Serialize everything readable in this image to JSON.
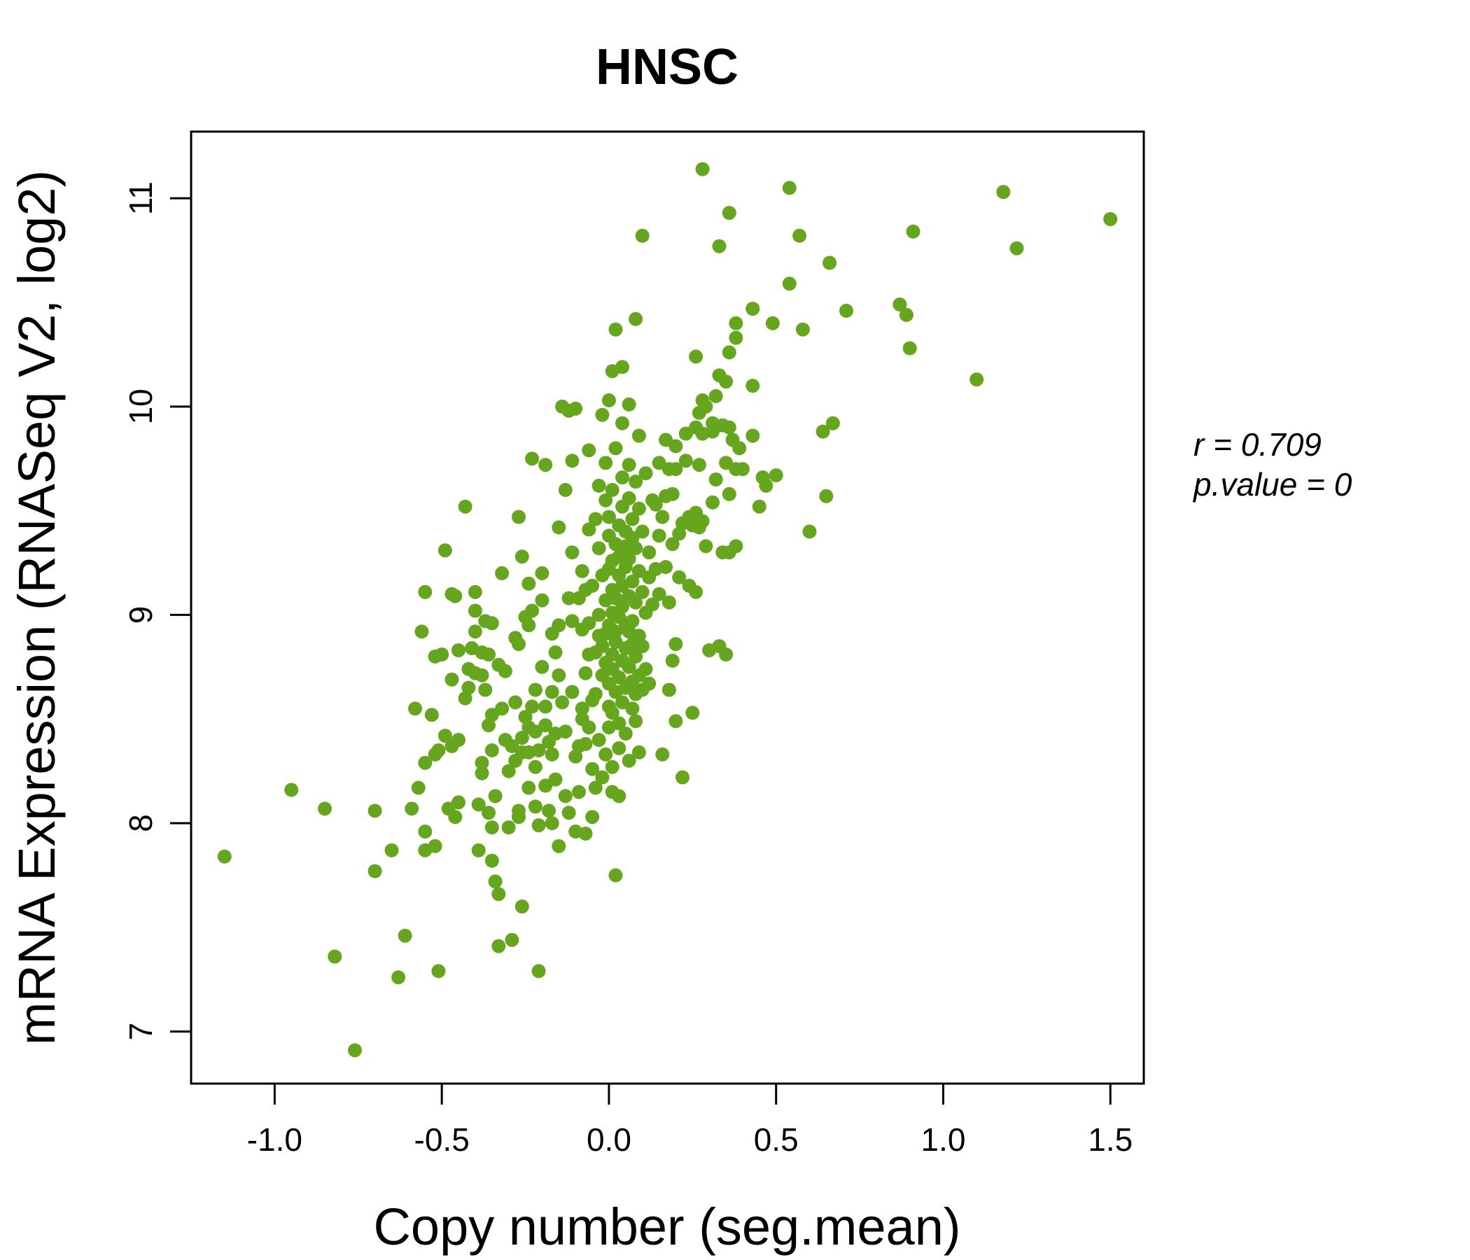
{
  "chart_data": {
    "type": "scatter",
    "title": "HNSC",
    "title_color": "#66a61e",
    "point_color": "#66a61e",
    "xlabel": "Copy number (seg.mean)",
    "ylabel": "mRNA Expression (RNASeq V2, log2)",
    "xlim": [
      -1.25,
      1.6
    ],
    "ylim": [
      6.75,
      11.32
    ],
    "xticks": [
      -1.0,
      -0.5,
      0.0,
      0.5,
      1.0,
      1.5
    ],
    "xtick_labels": [
      "-1.0",
      "-0.5",
      "0.0",
      "0.5",
      "1.0",
      "1.5"
    ],
    "yticks": [
      7,
      8,
      9,
      10,
      11
    ],
    "ytick_labels": [
      "7",
      "8",
      "9",
      "10",
      "11"
    ],
    "grid": false,
    "legend": "none",
    "annotations": {
      "r_label": "r = 0.709",
      "p_label": "p.value = 0"
    },
    "points": [
      [
        -1.15,
        7.84
      ],
      [
        -0.95,
        8.16
      ],
      [
        -0.85,
        8.07
      ],
      [
        -0.82,
        7.36
      ],
      [
        -0.76,
        6.91
      ],
      [
        -0.7,
        8.06
      ],
      [
        -0.7,
        7.77
      ],
      [
        -0.65,
        7.87
      ],
      [
        -0.63,
        7.26
      ],
      [
        -0.61,
        7.46
      ],
      [
        -0.59,
        8.07
      ],
      [
        -0.58,
        8.55
      ],
      [
        -0.57,
        8.17
      ],
      [
        -0.56,
        8.92
      ],
      [
        -0.55,
        8.29
      ],
      [
        -0.55,
        7.87
      ],
      [
        -0.55,
        7.96
      ],
      [
        -0.55,
        9.11
      ],
      [
        -0.53,
        8.52
      ],
      [
        -0.52,
        7.89
      ],
      [
        -0.52,
        8.33
      ],
      [
        -0.52,
        8.8
      ],
      [
        -0.51,
        7.29
      ],
      [
        -0.51,
        8.35
      ],
      [
        -0.5,
        8.81
      ],
      [
        -0.49,
        8.42
      ],
      [
        -0.49,
        9.31
      ],
      [
        -0.48,
        8.07
      ],
      [
        -0.47,
        8.37
      ],
      [
        -0.47,
        8.69
      ],
      [
        -0.47,
        9.1
      ],
      [
        -0.46,
        9.09
      ],
      [
        -0.46,
        8.03
      ],
      [
        -0.45,
        8.1
      ],
      [
        -0.45,
        8.4
      ],
      [
        -0.45,
        8.83
      ],
      [
        -0.43,
        8.6
      ],
      [
        -0.43,
        9.52
      ],
      [
        -0.42,
        8.74
      ],
      [
        -0.42,
        8.65
      ],
      [
        -0.41,
        8.84
      ],
      [
        -0.4,
        9.11
      ],
      [
        -0.4,
        9.02
      ],
      [
        -0.4,
        8.92
      ],
      [
        -0.4,
        8.72
      ],
      [
        -0.39,
        8.09
      ],
      [
        -0.39,
        7.87
      ],
      [
        -0.38,
        8.24
      ],
      [
        -0.38,
        8.29
      ],
      [
        -0.38,
        8.71
      ],
      [
        -0.38,
        8.82
      ],
      [
        -0.37,
        8.97
      ],
      [
        -0.37,
        8.64
      ],
      [
        -0.36,
        8.81
      ],
      [
        -0.36,
        8.47
      ],
      [
        -0.36,
        8.05
      ],
      [
        -0.35,
        7.98
      ],
      [
        -0.35,
        8.96
      ],
      [
        -0.35,
        7.82
      ],
      [
        -0.35,
        8.52
      ],
      [
        -0.35,
        8.35
      ],
      [
        -0.34,
        8.13
      ],
      [
        -0.34,
        7.72
      ],
      [
        -0.33,
        7.66
      ],
      [
        -0.33,
        7.41
      ],
      [
        -0.33,
        8.76
      ],
      [
        -0.32,
        8.55
      ],
      [
        -0.32,
        9.2
      ],
      [
        -0.31,
        8.73
      ],
      [
        -0.31,
        8.4
      ],
      [
        -0.3,
        8.25
      ],
      [
        -0.3,
        7.98
      ],
      [
        -0.29,
        8.37
      ],
      [
        -0.29,
        7.44
      ],
      [
        -0.28,
        8.89
      ],
      [
        -0.28,
        8.58
      ],
      [
        -0.28,
        8.3
      ],
      [
        -0.27,
        8.86
      ],
      [
        -0.27,
        8.06
      ],
      [
        -0.27,
        9.47
      ],
      [
        -0.27,
        8.03
      ],
      [
        -0.26,
        8.41
      ],
      [
        -0.26,
        9.28
      ],
      [
        -0.26,
        8.34
      ],
      [
        -0.26,
        7.6
      ],
      [
        -0.25,
        8.51
      ],
      [
        -0.25,
        8.99
      ],
      [
        -0.24,
        8.34
      ],
      [
        -0.24,
        8.46
      ],
      [
        -0.24,
        8.95
      ],
      [
        -0.24,
        9.15
      ],
      [
        -0.24,
        8.17
      ],
      [
        -0.23,
        9.02
      ],
      [
        -0.23,
        8.56
      ],
      [
        -0.23,
        9.75
      ],
      [
        -0.22,
        8.08
      ],
      [
        -0.22,
        8.44
      ],
      [
        -0.22,
        8.27
      ],
      [
        -0.22,
        8.64
      ],
      [
        -0.21,
        8.35
      ],
      [
        -0.21,
        7.99
      ],
      [
        -0.21,
        7.29
      ],
      [
        -0.2,
        8.75
      ],
      [
        -0.2,
        9.07
      ],
      [
        -0.2,
        9.2
      ],
      [
        -0.19,
        8.56
      ],
      [
        -0.19,
        8.18
      ],
      [
        -0.19,
        8.47
      ],
      [
        -0.19,
        9.72
      ],
      [
        -0.18,
        8.39
      ],
      [
        -0.18,
        8.06
      ],
      [
        -0.17,
        8.63
      ],
      [
        -0.17,
        8.33
      ],
      [
        -0.17,
        8.0
      ],
      [
        -0.17,
        8.91
      ],
      [
        -0.16,
        8.21
      ],
      [
        -0.16,
        8.82
      ],
      [
        -0.16,
        8.43
      ],
      [
        -0.15,
        8.95
      ],
      [
        -0.15,
        8.71
      ],
      [
        -0.15,
        7.89
      ],
      [
        -0.15,
        9.42
      ],
      [
        -0.14,
        8.58
      ],
      [
        -0.14,
        10.0
      ],
      [
        -0.13,
        8.44
      ],
      [
        -0.13,
        8.13
      ],
      [
        -0.13,
        9.6
      ],
      [
        -0.12,
        8.05
      ],
      [
        -0.12,
        9.08
      ],
      [
        -0.12,
        9.98
      ],
      [
        -0.11,
        8.97
      ],
      [
        -0.11,
        8.63
      ],
      [
        -0.11,
        9.3
      ],
      [
        -0.11,
        9.74
      ],
      [
        -0.1,
        8.32
      ],
      [
        -0.1,
        9.99
      ],
      [
        -0.1,
        7.96
      ],
      [
        -0.09,
        9.08
      ],
      [
        -0.09,
        8.15
      ],
      [
        -0.09,
        8.37
      ],
      [
        -0.08,
        8.5
      ],
      [
        -0.08,
        8.93
      ],
      [
        -0.08,
        9.21
      ],
      [
        -0.08,
        8.55
      ],
      [
        -0.07,
        8.72
      ],
      [
        -0.07,
        8.38
      ],
      [
        -0.07,
        9.12
      ],
      [
        -0.07,
        7.95
      ],
      [
        -0.06,
        8.81
      ],
      [
        -0.06,
        9.41
      ],
      [
        -0.06,
        8.46
      ],
      [
        -0.06,
        8.96
      ],
      [
        -0.06,
        9.79
      ],
      [
        -0.05,
        8.26
      ],
      [
        -0.05,
        8.59
      ],
      [
        -0.05,
        9.14
      ],
      [
        -0.05,
        8.03
      ],
      [
        -0.04,
        8.82
      ],
      [
        -0.04,
        8.62
      ],
      [
        -0.04,
        9.46
      ],
      [
        -0.04,
        8.17
      ],
      [
        -0.03,
        9.32
      ],
      [
        -0.03,
        8.4
      ],
      [
        -0.03,
        8.9
      ],
      [
        -0.03,
        9.0
      ],
      [
        -0.03,
        9.62
      ],
      [
        -0.02,
        8.71
      ],
      [
        -0.02,
        8.22
      ],
      [
        -0.02,
        9.19
      ],
      [
        -0.02,
        8.85
      ],
      [
        -0.02,
        9.96
      ],
      [
        -0.01,
        8.77
      ],
      [
        -0.01,
        8.33
      ],
      [
        -0.01,
        9.07
      ],
      [
        -0.01,
        9.55
      ],
      [
        -0.01,
        8.91
      ],
      [
        -0.01,
        9.73
      ],
      [
        0.0,
        8.56
      ],
      [
        0.0,
        9.38
      ],
      [
        0.0,
        8.67
      ],
      [
        0.0,
        9.22
      ],
      [
        0.0,
        8.95
      ],
      [
        0.0,
        8.46
      ],
      [
        0.0,
        10.03
      ],
      [
        0.0,
        9.47
      ],
      [
        0.01,
        8.81
      ],
      [
        0.01,
        9.01
      ],
      [
        0.01,
        9.26
      ],
      [
        0.01,
        8.74
      ],
      [
        0.01,
        9.12
      ],
      [
        0.01,
        8.53
      ],
      [
        0.01,
        8.27
      ],
      [
        0.01,
        10.17
      ],
      [
        0.01,
        8.15
      ],
      [
        0.01,
        9.6
      ],
      [
        0.02,
        8.92
      ],
      [
        0.02,
        9.34
      ],
      [
        0.02,
        8.63
      ],
      [
        0.02,
        9.08
      ],
      [
        0.02,
        8.87
      ],
      [
        0.02,
        7.75
      ],
      [
        0.02,
        10.37
      ],
      [
        0.02,
        9.8
      ],
      [
        0.03,
        9.19
      ],
      [
        0.03,
        8.48
      ],
      [
        0.03,
        9.43
      ],
      [
        0.03,
        8.99
      ],
      [
        0.03,
        8.7
      ],
      [
        0.03,
        9.28
      ],
      [
        0.03,
        8.36
      ],
      [
        0.03,
        8.13
      ],
      [
        0.04,
        9.04
      ],
      [
        0.04,
        8.78
      ],
      [
        0.04,
        9.14
      ],
      [
        0.04,
        9.52
      ],
      [
        0.04,
        8.58
      ],
      [
        0.04,
        9.66
      ],
      [
        0.04,
        10.19
      ],
      [
        0.04,
        9.92
      ],
      [
        0.05,
        8.84
      ],
      [
        0.05,
        9.33
      ],
      [
        0.05,
        8.96
      ],
      [
        0.05,
        8.65
      ],
      [
        0.05,
        9.23
      ],
      [
        0.05,
        8.43
      ],
      [
        0.05,
        9.4
      ],
      [
        0.06,
        9.09
      ],
      [
        0.06,
        8.75
      ],
      [
        0.06,
        9.56
      ],
      [
        0.06,
        8.92
      ],
      [
        0.06,
        9.27
      ],
      [
        0.06,
        8.3
      ],
      [
        0.06,
        10.01
      ],
      [
        0.06,
        9.72
      ],
      [
        0.07,
        8.97
      ],
      [
        0.07,
        8.68
      ],
      [
        0.07,
        9.37
      ],
      [
        0.07,
        8.86
      ],
      [
        0.07,
        9.16
      ],
      [
        0.07,
        9.46
      ],
      [
        0.07,
        8.55
      ],
      [
        0.08,
        9.06
      ],
      [
        0.08,
        8.8
      ],
      [
        0.08,
        9.64
      ],
      [
        0.08,
        8.62
      ],
      [
        0.08,
        9.32
      ],
      [
        0.08,
        10.42
      ],
      [
        0.08,
        8.49
      ],
      [
        0.09,
        9.21
      ],
      [
        0.09,
        8.9
      ],
      [
        0.09,
        8.71
      ],
      [
        0.09,
        9.51
      ],
      [
        0.09,
        8.34
      ],
      [
        0.09,
        9.86
      ],
      [
        0.1,
        9.11
      ],
      [
        0.1,
        8.85
      ],
      [
        0.1,
        9.4
      ],
      [
        0.1,
        8.64
      ],
      [
        0.1,
        10.82
      ],
      [
        0.11,
        9.68
      ],
      [
        0.11,
        9.01
      ],
      [
        0.11,
        8.74
      ],
      [
        0.12,
        9.3
      ],
      [
        0.12,
        9.18
      ],
      [
        0.12,
        8.67
      ],
      [
        0.13,
        9.55
      ],
      [
        0.13,
        9.05
      ],
      [
        0.14,
        9.22
      ],
      [
        0.14,
        9.53
      ],
      [
        0.15,
        9.38
      ],
      [
        0.15,
        9.73
      ],
      [
        0.15,
        9.1
      ],
      [
        0.16,
        9.47
      ],
      [
        0.16,
        8.33
      ],
      [
        0.17,
        9.23
      ],
      [
        0.17,
        9.84
      ],
      [
        0.17,
        9.57
      ],
      [
        0.18,
        8.64
      ],
      [
        0.18,
        9.06
      ],
      [
        0.18,
        9.7
      ],
      [
        0.19,
        9.34
      ],
      [
        0.19,
        8.78
      ],
      [
        0.19,
        9.58
      ],
      [
        0.2,
        9.81
      ],
      [
        0.2,
        8.49
      ],
      [
        0.2,
        8.86
      ],
      [
        0.2,
        9.7
      ],
      [
        0.21,
        9.18
      ],
      [
        0.21,
        9.39
      ],
      [
        0.22,
        9.44
      ],
      [
        0.22,
        8.22
      ],
      [
        0.23,
        9.87
      ],
      [
        0.23,
        9.74
      ],
      [
        0.24,
        9.47
      ],
      [
        0.24,
        9.14
      ],
      [
        0.25,
        9.43
      ],
      [
        0.25,
        8.53
      ],
      [
        0.26,
        9.9
      ],
      [
        0.26,
        9.49
      ],
      [
        0.26,
        9.11
      ],
      [
        0.26,
        10.24
      ],
      [
        0.27,
        9.97
      ],
      [
        0.27,
        9.42
      ],
      [
        0.27,
        9.72
      ],
      [
        0.28,
        10.03
      ],
      [
        0.28,
        9.87
      ],
      [
        0.28,
        9.45
      ],
      [
        0.28,
        11.14
      ],
      [
        0.29,
        9.33
      ],
      [
        0.29,
        10.0
      ],
      [
        0.3,
        8.83
      ],
      [
        0.31,
        9.88
      ],
      [
        0.31,
        9.54
      ],
      [
        0.31,
        9.92
      ],
      [
        0.32,
        10.05
      ],
      [
        0.32,
        9.65
      ],
      [
        0.33,
        10.15
      ],
      [
        0.33,
        8.85
      ],
      [
        0.33,
        10.77
      ],
      [
        0.34,
        9.91
      ],
      [
        0.34,
        9.3
      ],
      [
        0.35,
        9.73
      ],
      [
        0.35,
        10.12
      ],
      [
        0.35,
        8.81
      ],
      [
        0.36,
        10.26
      ],
      [
        0.36,
        9.58
      ],
      [
        0.36,
        9.9
      ],
      [
        0.36,
        9.3
      ],
      [
        0.36,
        10.93
      ],
      [
        0.37,
        9.84
      ],
      [
        0.38,
        10.33
      ],
      [
        0.38,
        9.7
      ],
      [
        0.38,
        10.4
      ],
      [
        0.38,
        9.33
      ],
      [
        0.39,
        9.8
      ],
      [
        0.4,
        9.7
      ],
      [
        0.43,
        10.1
      ],
      [
        0.43,
        9.86
      ],
      [
        0.43,
        10.47
      ],
      [
        0.45,
        9.52
      ],
      [
        0.46,
        9.66
      ],
      [
        0.47,
        9.62
      ],
      [
        0.49,
        10.4
      ],
      [
        0.5,
        9.67
      ],
      [
        0.54,
        10.59
      ],
      [
        0.54,
        11.05
      ],
      [
        0.57,
        10.82
      ],
      [
        0.58,
        10.37
      ],
      [
        0.6,
        9.4
      ],
      [
        0.64,
        9.88
      ],
      [
        0.65,
        9.57
      ],
      [
        0.66,
        10.69
      ],
      [
        0.67,
        9.92
      ],
      [
        0.71,
        10.46
      ],
      [
        0.87,
        10.49
      ],
      [
        0.89,
        10.44
      ],
      [
        0.9,
        10.28
      ],
      [
        0.91,
        10.84
      ],
      [
        1.1,
        10.13
      ],
      [
        1.18,
        11.03
      ],
      [
        1.22,
        10.76
      ],
      [
        1.5,
        10.9
      ]
    ]
  }
}
